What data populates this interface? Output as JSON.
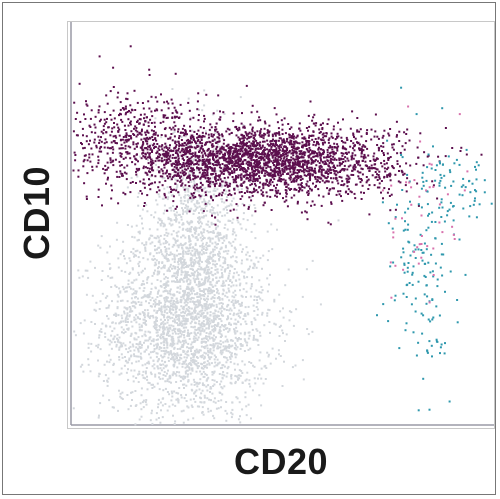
{
  "chart_data": {
    "type": "scatter",
    "title": "",
    "xlabel": "CD20",
    "ylabel": "CD10",
    "xlim": [
      0,
      1
    ],
    "ylim": [
      0,
      1
    ],
    "tick_labels_shown": false,
    "grid": false,
    "legend": "none",
    "series": [
      {
        "color": "#5c0f4e",
        "clusters": [
          {
            "center": [
              0.45,
              0.66
            ],
            "spread": [
              0.16,
              0.045
            ],
            "count": 2600
          },
          {
            "center": [
              0.18,
              0.72
            ],
            "spread": [
              0.1,
              0.06
            ],
            "count": 500
          }
        ]
      },
      {
        "color": "#d3d7dc",
        "clusters": [
          {
            "center": [
              0.27,
              0.25
            ],
            "spread": [
              0.1,
              0.12
            ],
            "count": 2400
          },
          {
            "center": [
              0.29,
              0.48
            ],
            "spread": [
              0.06,
              0.12
            ],
            "count": 900
          }
        ]
      },
      {
        "color": "#2f98ad",
        "clusters": [
          {
            "center": [
              0.83,
              0.4
            ],
            "spread": [
              0.04,
              0.14
            ],
            "count": 160
          },
          {
            "center": [
              0.92,
              0.58
            ],
            "spread": [
              0.04,
              0.05
            ],
            "count": 60
          }
        ]
      },
      {
        "color": "#d872ad",
        "clusters": [
          {
            "center": [
              0.84,
              0.5
            ],
            "spread": [
              0.05,
              0.1
            ],
            "count": 45
          }
        ]
      }
    ]
  }
}
